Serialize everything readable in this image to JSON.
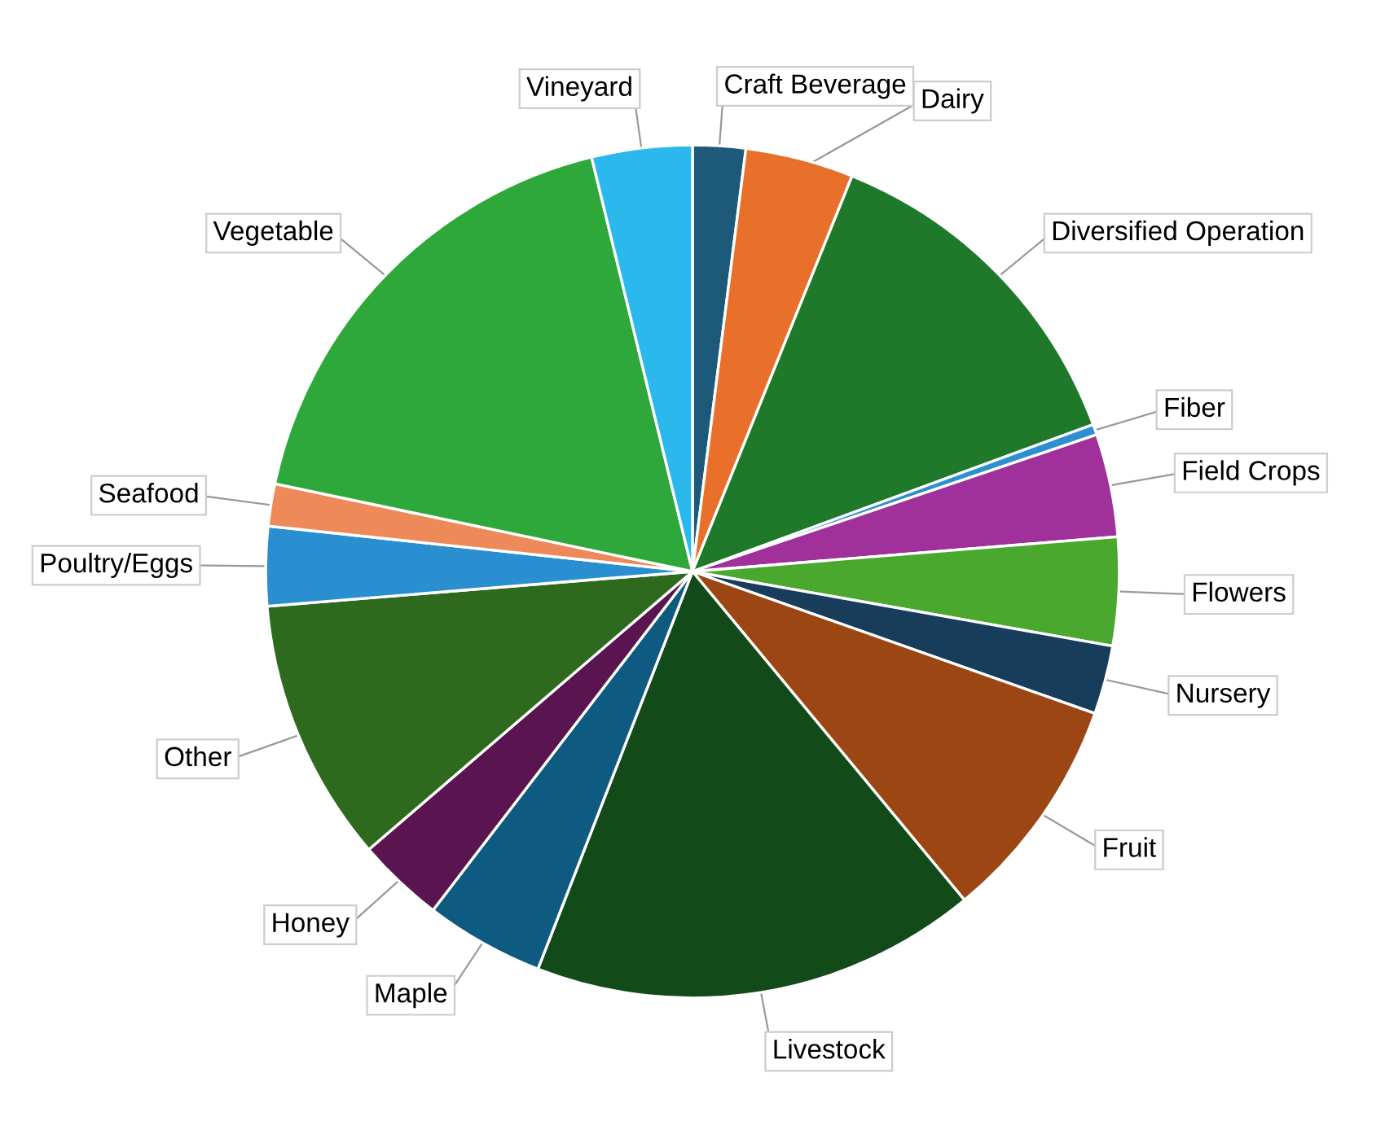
{
  "chart_data": {
    "type": "pie",
    "categories": [
      "Craft Beverage",
      "Dairy",
      "Diversified Operation",
      "Fiber",
      "Field Crops",
      "Flowers",
      "Nursery",
      "Fruit",
      "Livestock",
      "Maple",
      "Honey",
      "Other",
      "Poultry/Eggs",
      "Seafood",
      "Vegetable",
      "Vineyard"
    ],
    "values": [
      2.0,
      4.1,
      13.3,
      0.4,
      3.9,
      4.1,
      2.6,
      8.6,
      16.9,
      4.5,
      3.3,
      10.0,
      3.0,
      1.6,
      17.9,
      3.8
    ],
    "colors": [
      "#1d5a7a",
      "#e8702a",
      "#1e7a2a",
      "#2e8fd0",
      "#a0309a",
      "#4aa82e",
      "#173d5a",
      "#9c4614",
      "#134a1a",
      "#0f5a80",
      "#5a1550",
      "#2d6a1e",
      "#2a8fd0",
      "#ee8a5a",
      "#2ea83a",
      "#2bb8ec"
    ],
    "legend": false
  }
}
